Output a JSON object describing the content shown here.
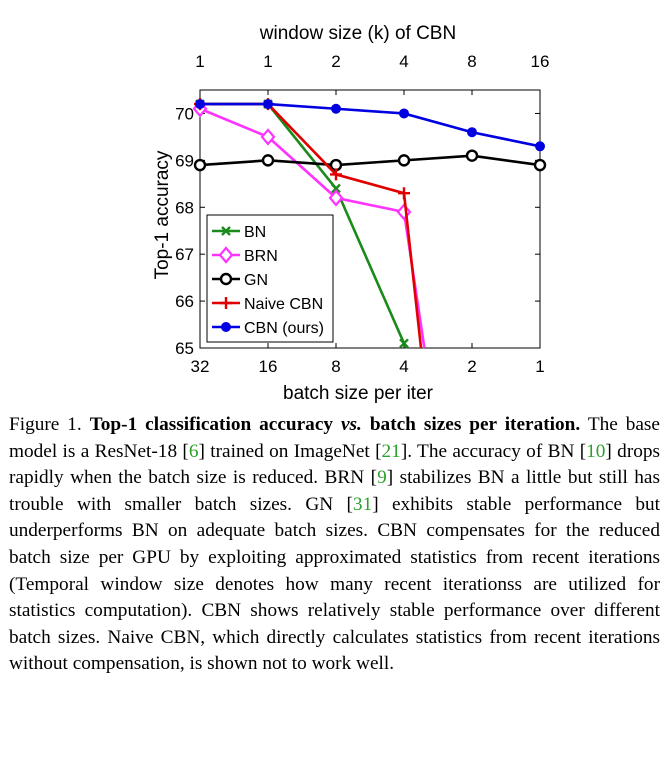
{
  "chart_data": {
    "type": "line",
    "title_top": "window size (k) of CBN",
    "xlabel": "batch size per iter",
    "ylabel": "Top-1 accuracy",
    "categories": [
      "32",
      "16",
      "8",
      "4",
      "2",
      "1"
    ],
    "top_categories": [
      "1",
      "1",
      "2",
      "4",
      "8",
      "16"
    ],
    "ylim": [
      65,
      70.5
    ],
    "yticks": [
      65,
      66,
      67,
      68,
      69,
      70
    ],
    "legend_position": "bottom-left",
    "series": [
      {
        "name": "BN",
        "color": "#1a8a1a",
        "marker": "x",
        "points": [
          [
            0,
            70.2
          ],
          [
            1,
            70.2
          ],
          [
            2,
            68.4
          ],
          [
            3,
            65.1
          ],
          [
            3.05,
            65.0
          ]
        ]
      },
      {
        "name": "BRN",
        "color": "#ff33ff",
        "marker": "diamond",
        "points": [
          [
            0,
            70.1
          ],
          [
            1,
            69.5
          ],
          [
            2,
            68.2
          ],
          [
            3,
            67.9
          ],
          [
            3.3,
            65.0
          ]
        ]
      },
      {
        "name": "GN",
        "color": "#000000",
        "marker": "circle",
        "points": [
          [
            0,
            68.9
          ],
          [
            1,
            69.0
          ],
          [
            2,
            68.9
          ],
          [
            3,
            69.0
          ],
          [
            4,
            69.1
          ],
          [
            5,
            68.9
          ]
        ]
      },
      {
        "name": "Naive CBN",
        "color": "#e00000",
        "marker": "plus",
        "points": [
          [
            0,
            70.2
          ],
          [
            1,
            70.2
          ],
          [
            2,
            68.7
          ],
          [
            3,
            68.3
          ],
          [
            3.25,
            65.0
          ]
        ]
      },
      {
        "name": "CBN (ours)",
        "color": "#0000e0",
        "marker": "dot",
        "points": [
          [
            0,
            70.2
          ],
          [
            1,
            70.2
          ],
          [
            2,
            70.1
          ],
          [
            3,
            70.0
          ],
          [
            4,
            69.6
          ],
          [
            5,
            69.3
          ]
        ]
      }
    ]
  },
  "caption": {
    "label": "Figure 1.",
    "bold_a": "Top-1 classification accuracy",
    "vs": "vs.",
    "bold_b": "batch sizes per iteration.",
    "t1": "The base model is a ResNet-18 [",
    "c1": "6",
    "t2": "] trained on ImageNet [",
    "c2": "21",
    "t3": "]. The accuracy of BN [",
    "c3": "10",
    "t4": "] drops rapidly when the batch size is reduced. BRN [",
    "c4": "9",
    "t5": "] stabilizes BN a little but still has trouble with smaller batch sizes. GN [",
    "c5": "31",
    "t6": "] exhibits stable performance but underperforms BN on adequate batch sizes. CBN compensates for the reduced batch size per GPU by exploiting approximated statistics from recent iterations (Temporal window size denotes how many recent iterationss are utilized for statistics computation). CBN shows relatively stable performance over different batch sizes. Naive CBN, which directly calculates statistics from recent iterations without compensation, is shown not to work well."
  }
}
